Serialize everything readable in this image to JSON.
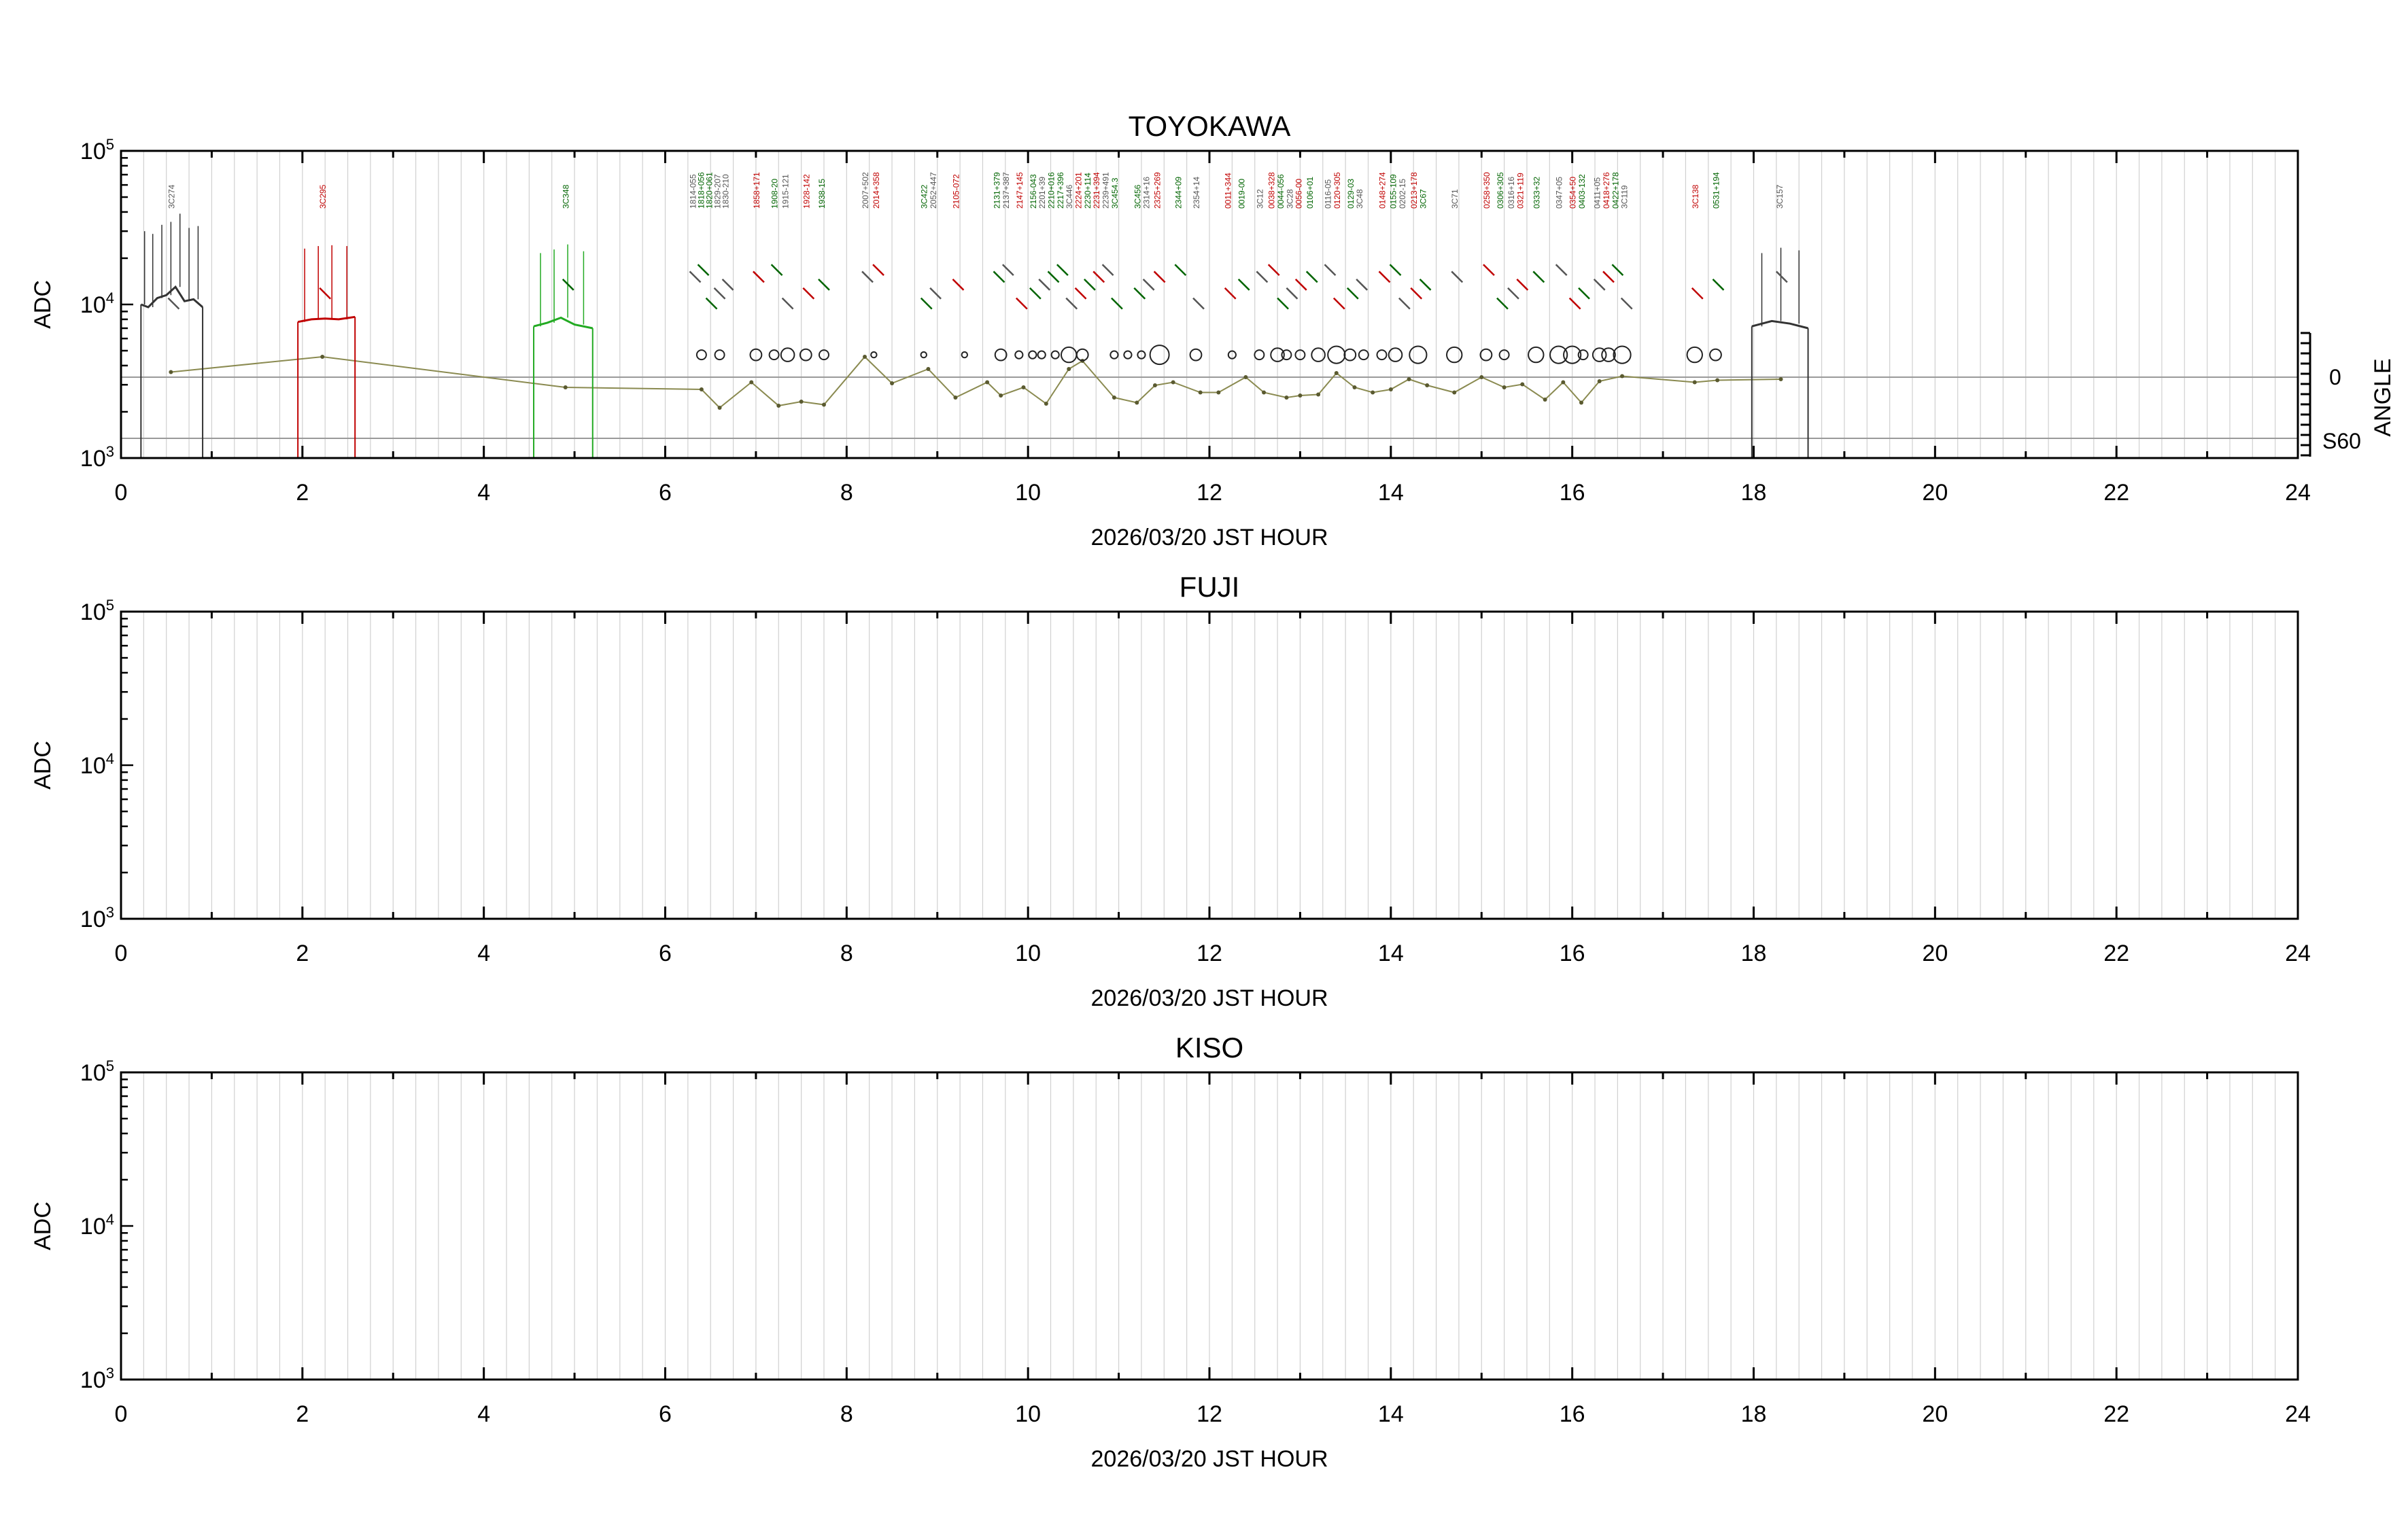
{
  "chart_data": [
    {
      "type": "line",
      "title": "TOYOKAWA",
      "xlabel": "2026/03/20 JST HOUR",
      "ylabel": "ADC",
      "yscale": "log",
      "xlim": [
        0,
        24
      ],
      "ylim": [
        1000,
        100000
      ],
      "x_ticks": [
        "0",
        "2",
        "4",
        "6",
        "8",
        "10",
        "12",
        "14",
        "16",
        "18",
        "20",
        "22",
        "24"
      ],
      "y_ticks": [
        {
          "base": "10",
          "exp": "3"
        },
        {
          "base": "10",
          "exp": "4"
        },
        {
          "base": "10",
          "exp": "5"
        }
      ],
      "y2label": "ANGLE",
      "y2_ticks": [
        "0",
        "S60"
      ],
      "grid": "vertical",
      "source_labels": [
        {
          "x": 0.55,
          "text": "3C274",
          "color": "#555555"
        },
        {
          "x": 2.22,
          "text": "3C295",
          "color": "#c00000"
        },
        {
          "x": 4.9,
          "text": "3C348",
          "color": "#006400"
        },
        {
          "x": 6.3,
          "text": "1814-055",
          "color": "#555555"
        },
        {
          "x": 6.39,
          "text": "1818+056",
          "color": "#006400"
        },
        {
          "x": 6.48,
          "text": "1820+061",
          "color": "#006400"
        },
        {
          "x": 6.57,
          "text": "1829-207",
          "color": "#555555"
        },
        {
          "x": 6.66,
          "text": "1830-210",
          "color": "#555555"
        },
        {
          "x": 7.0,
          "text": "1858+171",
          "color": "#c00000"
        },
        {
          "x": 7.2,
          "text": "1908-20",
          "color": "#006400"
        },
        {
          "x": 7.32,
          "text": "1915-121",
          "color": "#555555"
        },
        {
          "x": 7.55,
          "text": "1928-142",
          "color": "#c00000"
        },
        {
          "x": 7.72,
          "text": "1938-15",
          "color": "#006400"
        },
        {
          "x": 8.2,
          "text": "2007+502",
          "color": "#555555"
        },
        {
          "x": 8.32,
          "text": "2014+358",
          "color": "#c00000"
        },
        {
          "x": 8.85,
          "text": "3C422",
          "color": "#006400"
        },
        {
          "x": 8.95,
          "text": "2052+447",
          "color": "#555555"
        },
        {
          "x": 9.2,
          "text": "2105-072",
          "color": "#c00000"
        },
        {
          "x": 9.65,
          "text": "2131+379",
          "color": "#006400"
        },
        {
          "x": 9.75,
          "text": "2137+387",
          "color": "#555555"
        },
        {
          "x": 9.9,
          "text": "2147+145",
          "color": "#c00000"
        },
        {
          "x": 10.05,
          "text": "2156-043",
          "color": "#006400"
        },
        {
          "x": 10.15,
          "text": "2201+39",
          "color": "#555555"
        },
        {
          "x": 10.25,
          "text": "2210+016",
          "color": "#006400"
        },
        {
          "x": 10.35,
          "text": "2217+396",
          "color": "#006400"
        },
        {
          "x": 10.45,
          "text": "3C446",
          "color": "#555555"
        },
        {
          "x": 10.55,
          "text": "2224+201",
          "color": "#c00000"
        },
        {
          "x": 10.65,
          "text": "2230+114",
          "color": "#006400"
        },
        {
          "x": 10.75,
          "text": "2231+394",
          "color": "#c00000"
        },
        {
          "x": 10.85,
          "text": "2239+491",
          "color": "#555555"
        },
        {
          "x": 10.95,
          "text": "3C454.3",
          "color": "#006400"
        },
        {
          "x": 11.2,
          "text": "3C456",
          "color": "#006400"
        },
        {
          "x": 11.3,
          "text": "2314+16",
          "color": "#555555"
        },
        {
          "x": 11.42,
          "text": "2325+269",
          "color": "#c00000"
        },
        {
          "x": 11.65,
          "text": "2344+09",
          "color": "#006400"
        },
        {
          "x": 11.85,
          "text": "2354+14",
          "color": "#555555"
        },
        {
          "x": 12.2,
          "text": "0011+344",
          "color": "#c00000"
        },
        {
          "x": 12.35,
          "text": "0019-00",
          "color": "#006400"
        },
        {
          "x": 12.55,
          "text": "3C12",
          "color": "#555555"
        },
        {
          "x": 12.68,
          "text": "0038+328",
          "color": "#c00000"
        },
        {
          "x": 12.78,
          "text": "0044-056",
          "color": "#006400"
        },
        {
          "x": 12.88,
          "text": "3C28",
          "color": "#555555"
        },
        {
          "x": 12.98,
          "text": "0056-00",
          "color": "#c00000"
        },
        {
          "x": 13.1,
          "text": "0106+01",
          "color": "#006400"
        },
        {
          "x": 13.3,
          "text": "0116-05",
          "color": "#555555"
        },
        {
          "x": 13.4,
          "text": "0120+305",
          "color": "#c00000"
        },
        {
          "x": 13.55,
          "text": "0129-03",
          "color": "#006400"
        },
        {
          "x": 13.65,
          "text": "3C48",
          "color": "#555555"
        },
        {
          "x": 13.9,
          "text": "0148+274",
          "color": "#c00000"
        },
        {
          "x": 14.02,
          "text": "0155-109",
          "color": "#006400"
        },
        {
          "x": 14.12,
          "text": "0202-15",
          "color": "#555555"
        },
        {
          "x": 14.25,
          "text": "0213+178",
          "color": "#c00000"
        },
        {
          "x": 14.35,
          "text": "3C67",
          "color": "#006400"
        },
        {
          "x": 14.7,
          "text": "3C71",
          "color": "#555555"
        },
        {
          "x": 15.05,
          "text": "0258+350",
          "color": "#c00000"
        },
        {
          "x": 15.2,
          "text": "0306+305",
          "color": "#006400"
        },
        {
          "x": 15.32,
          "text": "0316+16",
          "color": "#555555"
        },
        {
          "x": 15.42,
          "text": "0321+119",
          "color": "#c00000"
        },
        {
          "x": 15.6,
          "text": "0333+32",
          "color": "#006400"
        },
        {
          "x": 15.85,
          "text": "0347+05",
          "color": "#555555"
        },
        {
          "x": 16.0,
          "text": "0354+50",
          "color": "#c00000"
        },
        {
          "x": 16.1,
          "text": "0403-132",
          "color": "#006400"
        },
        {
          "x": 16.27,
          "text": "0411+05",
          "color": "#555555"
        },
        {
          "x": 16.37,
          "text": "0418+276",
          "color": "#c00000"
        },
        {
          "x": 16.47,
          "text": "0422+178",
          "color": "#006400"
        },
        {
          "x": 16.57,
          "text": "3C119",
          "color": "#555555"
        },
        {
          "x": 17.35,
          "text": "3C138",
          "color": "#c00000"
        },
        {
          "x": 17.58,
          "text": "0531+194",
          "color": "#006400"
        },
        {
          "x": 18.28,
          "text": "3C157",
          "color": "#555555"
        }
      ],
      "adc_segments": [
        {
          "color": "#333333",
          "x": [
            0.22,
            0.3,
            0.4,
            0.5,
            0.6,
            0.7,
            0.8,
            0.9
          ],
          "y": [
            10000,
            9600,
            11000,
            11500,
            13000,
            10500,
            10800,
            9600
          ]
        },
        {
          "color": "#c00000",
          "x": [
            1.95,
            2.1,
            2.25,
            2.4,
            2.58
          ],
          "y": [
            7700,
            8000,
            8100,
            8000,
            8300
          ]
        },
        {
          "color": "#22aa22",
          "x": [
            4.55,
            4.7,
            4.85,
            5.0,
            5.2
          ],
          "y": [
            7200,
            7600,
            8200,
            7400,
            7000
          ]
        },
        {
          "color": "#333333",
          "x": [
            17.98,
            18.2,
            18.4,
            18.6
          ],
          "y": [
            7200,
            7800,
            7500,
            7000
          ]
        }
      ],
      "angle_track": {
        "x": [
          0.55,
          2.22,
          4.9,
          6.4,
          6.6,
          6.95,
          7.25,
          7.5,
          7.75,
          8.2,
          8.5,
          8.9,
          9.2,
          9.55,
          9.7,
          9.95,
          10.2,
          10.45,
          10.6,
          10.95,
          11.2,
          11.4,
          11.6,
          11.9,
          12.1,
          12.4,
          12.6,
          12.85,
          13.0,
          13.2,
          13.4,
          13.6,
          13.8,
          14.0,
          14.2,
          14.4,
          14.7,
          15.0,
          15.25,
          15.45,
          15.7,
          15.9,
          16.1,
          16.3,
          16.55,
          17.35,
          17.6,
          18.3
        ],
        "y": [
          5,
          20,
          -10,
          -12,
          -30,
          -5,
          -28,
          -24,
          -27,
          20,
          -6,
          8,
          -20,
          -5,
          -18,
          -10,
          -26,
          8,
          16,
          -20,
          -25,
          -8,
          -5,
          -15,
          -15,
          0,
          -15,
          -20,
          -18,
          -17,
          4,
          -10,
          -15,
          -12,
          -2,
          -8,
          -15,
          0,
          -10,
          -7,
          -22,
          -5,
          -25,
          -4,
          1,
          -5,
          -3,
          -2
        ],
        "circles_y": 4700,
        "circles_x": [
          6.4,
          6.6,
          7.0,
          7.2,
          7.35,
          7.55,
          7.75,
          8.3,
          8.85,
          9.3,
          9.7,
          9.9,
          10.05,
          10.15,
          10.3,
          10.45,
          10.6,
          10.95,
          11.1,
          11.25,
          11.45,
          11.85,
          12.25,
          12.55,
          12.75,
          12.85,
          13.0,
          13.2,
          13.4,
          13.55,
          13.7,
          13.9,
          14.05,
          14.3,
          14.7,
          15.05,
          15.25,
          15.6,
          15.85,
          16.0,
          16.12,
          16.3,
          16.4,
          16.55,
          17.35,
          17.58
        ],
        "circles_r": [
          5,
          5,
          6,
          5,
          7,
          6,
          5,
          3,
          3,
          3,
          6,
          4,
          4,
          4,
          4,
          8,
          6,
          4,
          4,
          4,
          10,
          6,
          4,
          5,
          7,
          5,
          5,
          7,
          9,
          6,
          5,
          5,
          7,
          9,
          8,
          6,
          5,
          8,
          9,
          9,
          5,
          7,
          7,
          9,
          8,
          6
        ]
      }
    },
    {
      "type": "line",
      "title": "FUJI",
      "xlabel": "2026/03/20 JST HOUR",
      "ylabel": "ADC",
      "yscale": "log",
      "xlim": [
        0,
        24
      ],
      "ylim": [
        1000,
        100000
      ],
      "x_ticks": [
        "0",
        "2",
        "4",
        "6",
        "8",
        "10",
        "12",
        "14",
        "16",
        "18",
        "20",
        "22",
        "24"
      ],
      "y_ticks": [
        {
          "base": "10",
          "exp": "3"
        },
        {
          "base": "10",
          "exp": "4"
        },
        {
          "base": "10",
          "exp": "5"
        }
      ],
      "grid": "vertical",
      "series": []
    },
    {
      "type": "line",
      "title": "KISO",
      "xlabel": "2026/03/20 JST HOUR",
      "ylabel": "ADC",
      "yscale": "log",
      "xlim": [
        0,
        24
      ],
      "ylim": [
        1000,
        100000
      ],
      "x_ticks": [
        "0",
        "2",
        "4",
        "6",
        "8",
        "10",
        "12",
        "14",
        "16",
        "18",
        "20",
        "22",
        "24"
      ],
      "y_ticks": [
        {
          "base": "10",
          "exp": "3"
        },
        {
          "base": "10",
          "exp": "4"
        },
        {
          "base": "10",
          "exp": "5"
        }
      ],
      "grid": "vertical",
      "series": []
    }
  ]
}
